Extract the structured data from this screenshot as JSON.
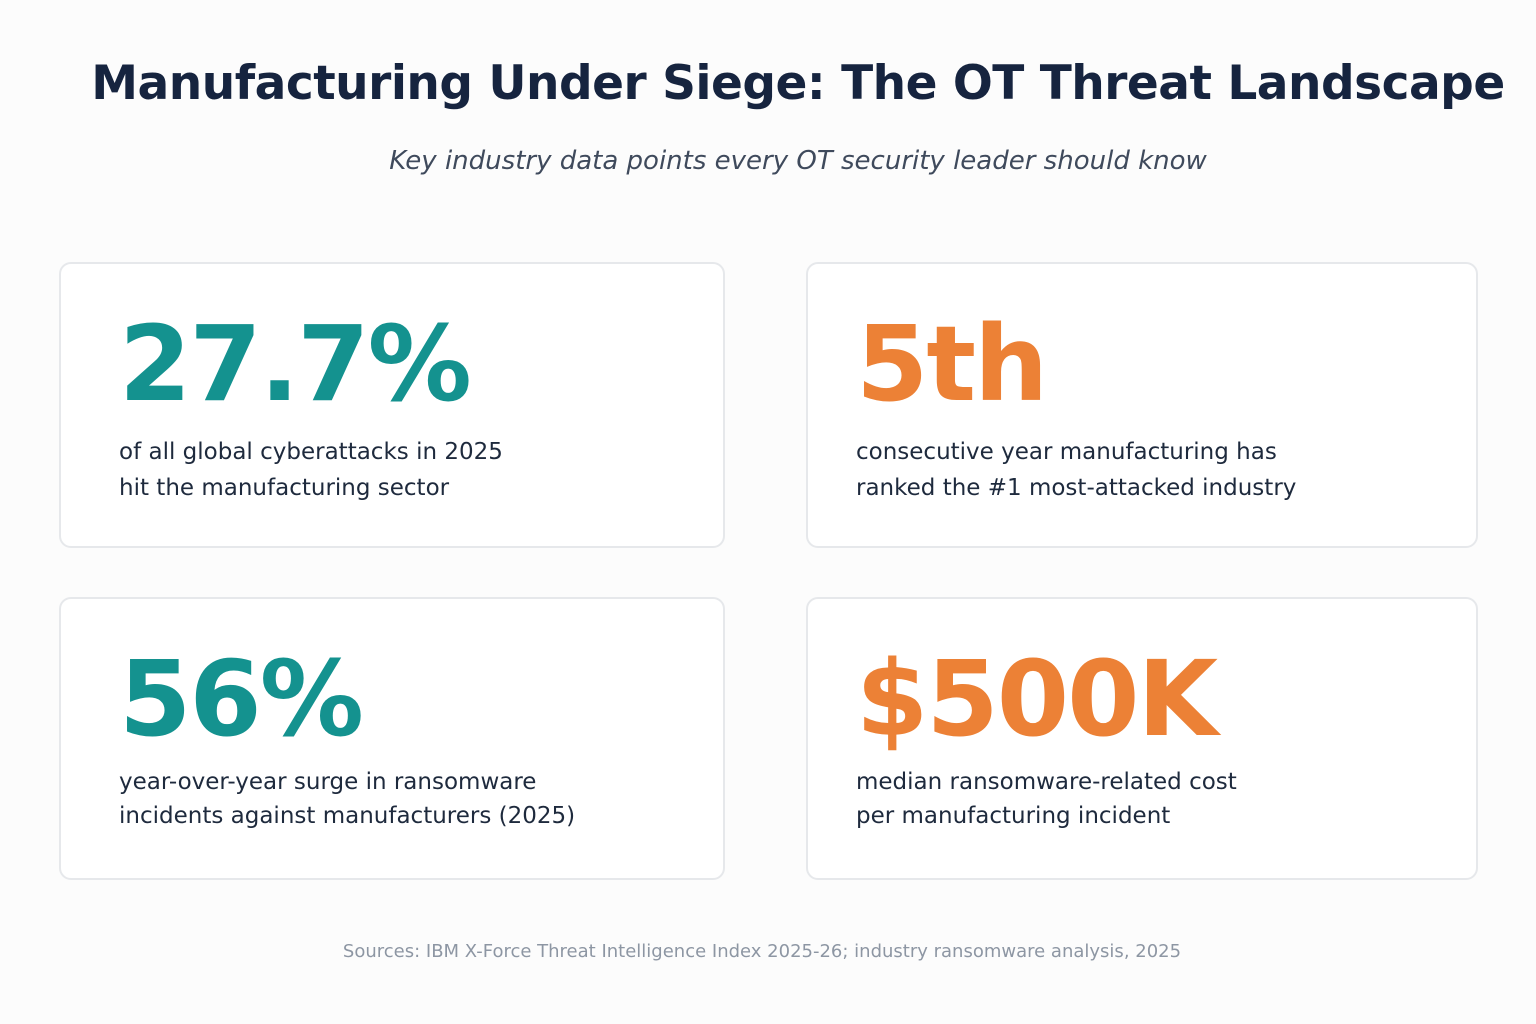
{
  "header": {
    "title": "Manufacturing Under Siege: The OT Threat Landscape",
    "subtitle": "Key industry data points every OT security leader should know"
  },
  "colors": {
    "teal": "#14928f",
    "orange": "#ec8136"
  },
  "cards": [
    {
      "stat": "27.7%",
      "accent": "teal",
      "description_lines": [
        "of all global cyberattacks in 2025",
        "hit the manufacturing sector"
      ]
    },
    {
      "stat": "5th",
      "accent": "orange",
      "description_lines": [
        "consecutive year manufacturing has",
        "ranked the #1 most-attacked industry"
      ]
    },
    {
      "stat": "56%",
      "accent": "teal",
      "description_lines": [
        "year-over-year surge in ransomware",
        "incidents against manufacturers (2025)"
      ]
    },
    {
      "stat": "$500K",
      "accent": "orange",
      "description_lines": [
        "median ransomware-related cost",
        "per manufacturing incident"
      ]
    }
  ],
  "footer": {
    "sources": "Sources: IBM X-Force Threat Intelligence Index 2025-26; industry ransomware analysis, 2025"
  }
}
